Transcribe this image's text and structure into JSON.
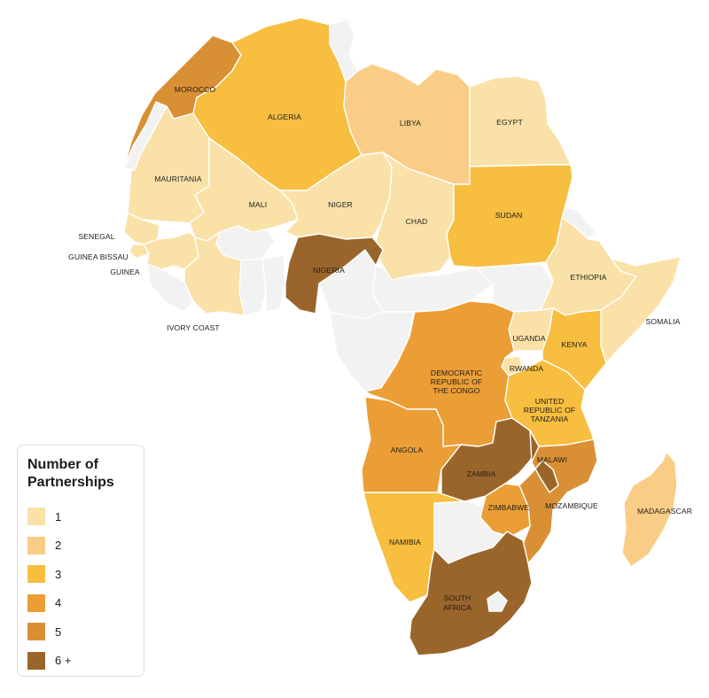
{
  "legend": {
    "title": "Number of Partnerships",
    "items": [
      {
        "label": "1",
        "color": "#fae1a7"
      },
      {
        "label": "2",
        "color": "#f9cd86"
      },
      {
        "label": "3",
        "color": "#f7be3f"
      },
      {
        "label": "4",
        "color": "#eb9e35"
      },
      {
        "label": "5",
        "color": "#d99035"
      },
      {
        "label": "6 +",
        "color": "#9a652b"
      }
    ]
  },
  "no_data_color": "#f2f2f2",
  "countries": [
    {
      "name": "MOROCCO",
      "partnerships": 5
    },
    {
      "name": "ALGERIA",
      "partnerships": 3
    },
    {
      "name": "LIBYA",
      "partnerships": 2
    },
    {
      "name": "EGYPT",
      "partnerships": 1
    },
    {
      "name": "MAURITANIA",
      "partnerships": 1
    },
    {
      "name": "MALI",
      "partnerships": 1
    },
    {
      "name": "NIGER",
      "partnerships": 1
    },
    {
      "name": "CHAD",
      "partnerships": 1
    },
    {
      "name": "SUDAN",
      "partnerships": 3
    },
    {
      "name": "SENEGAL",
      "partnerships": 1
    },
    {
      "name": "GUINEA BISSAU",
      "partnerships": 1
    },
    {
      "name": "GUINEA",
      "partnerships": 1
    },
    {
      "name": "IVORY COAST",
      "partnerships": 1
    },
    {
      "name": "NIGERIA",
      "partnerships": 6
    },
    {
      "name": "ETHIOPIA",
      "partnerships": 1
    },
    {
      "name": "SOMALIA",
      "partnerships": 1
    },
    {
      "name": "UGANDA",
      "partnerships": 1
    },
    {
      "name": "KENYA",
      "partnerships": 3
    },
    {
      "name": "RWANDA",
      "partnerships": 1
    },
    {
      "name": "DEMOCRATIC REPUBLIC OF THE CONGO",
      "partnerships": 4
    },
    {
      "name": "UNITED REPUBLIC OF TANZANIA",
      "partnerships": 3
    },
    {
      "name": "ANGOLA",
      "partnerships": 4
    },
    {
      "name": "ZAMBIA",
      "partnerships": 6
    },
    {
      "name": "MALAWI",
      "partnerships": 6
    },
    {
      "name": "MOZAMBIQUE",
      "partnerships": 5
    },
    {
      "name": "ZIMBABWE",
      "partnerships": 4
    },
    {
      "name": "NAMIBIA",
      "partnerships": 3
    },
    {
      "name": "SOUTH AFRICA",
      "partnerships": 6
    },
    {
      "name": "MADAGASCAR",
      "partnerships": 2
    }
  ]
}
